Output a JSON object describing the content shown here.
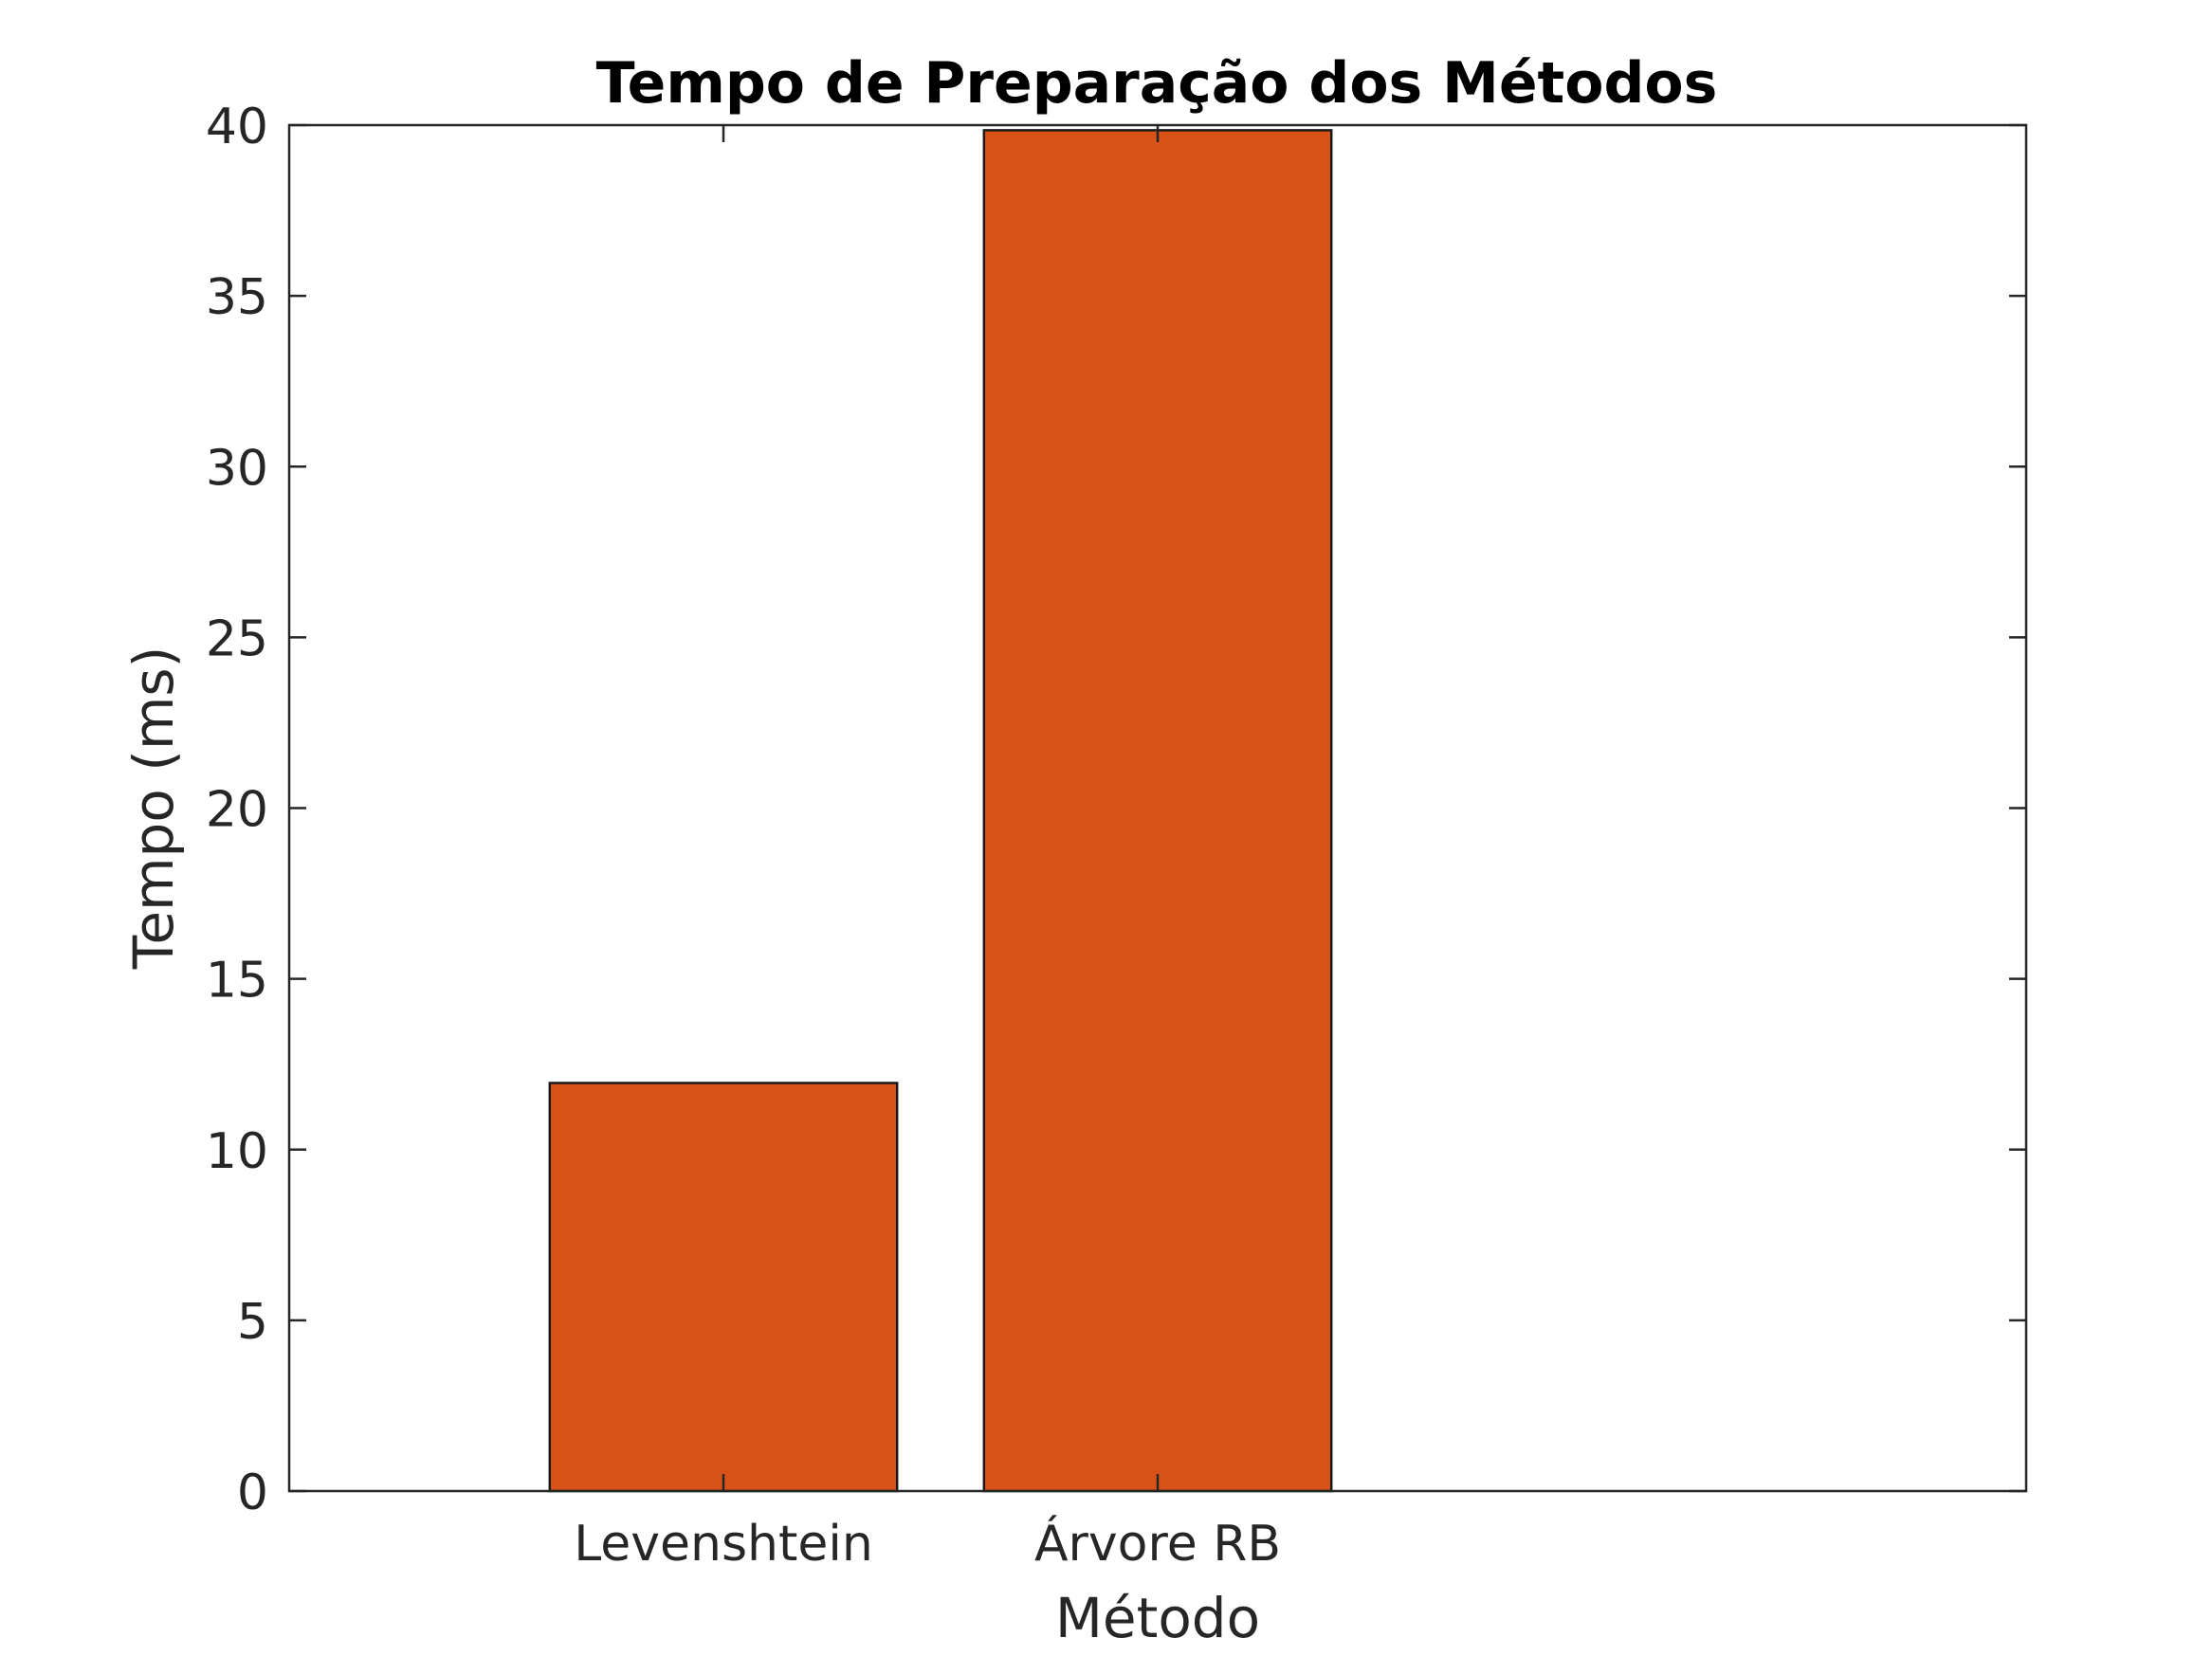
{
  "chart_data": {
    "type": "bar",
    "title": "Tempo de Preparação dos Métodos",
    "xlabel": "Método",
    "ylabel": "Tempo (ms)",
    "categories": [
      "Levenshtein",
      "Árvore RB"
    ],
    "values": [
      11.95,
      39.85
    ],
    "ylim": [
      0,
      40
    ],
    "yticks": [
      "0",
      "5",
      "10",
      "15",
      "20",
      "25",
      "30",
      "35",
      "40"
    ],
    "bar_color": "#D95319",
    "grid": false,
    "legend": "none"
  }
}
